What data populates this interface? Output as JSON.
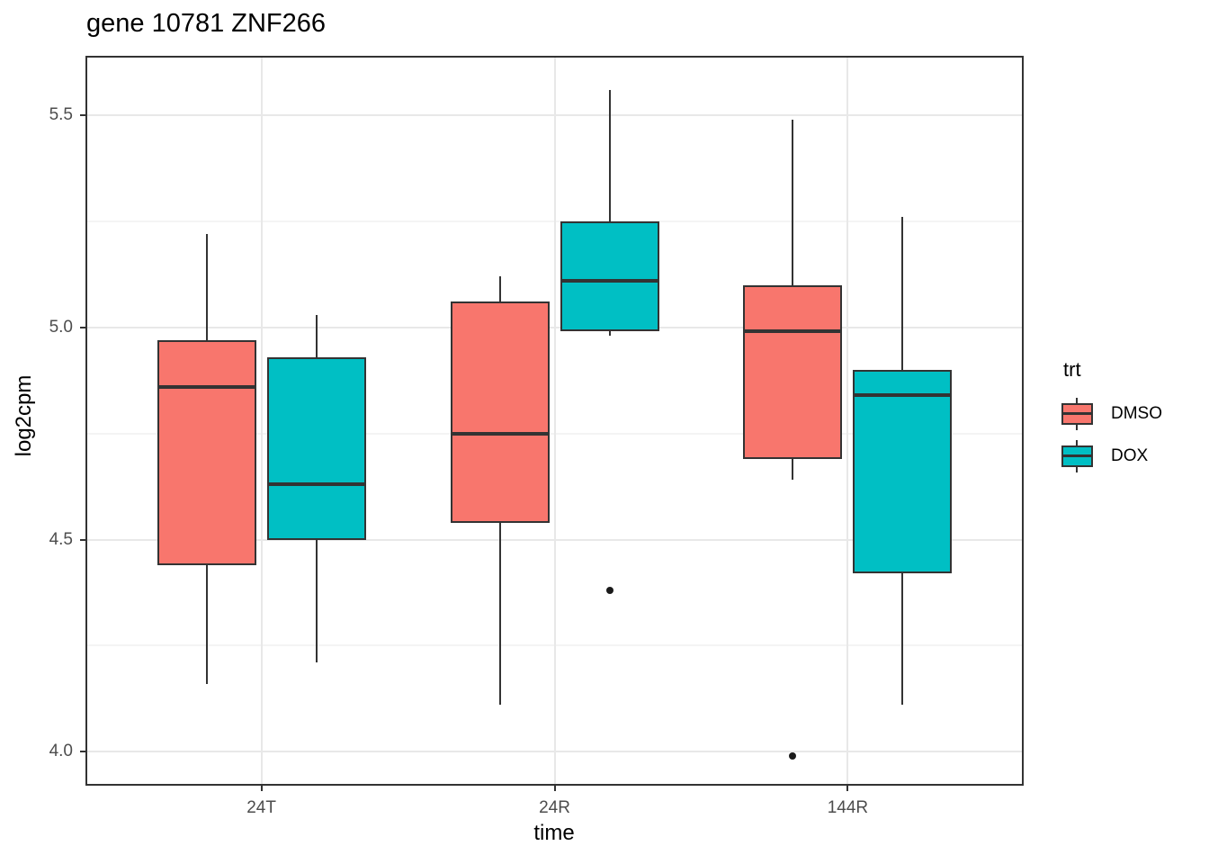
{
  "figure": {
    "background": "#FFFFFF"
  },
  "chart_data": {
    "type": "boxplot",
    "title": "gene 10781 ZNF266",
    "xlabel": "time",
    "ylabel": "log2cpm",
    "categories": [
      "24T",
      "24R",
      "144R"
    ],
    "ylim": [
      3.92,
      5.64
    ],
    "y_major_ticks": [
      4.0,
      4.5,
      5.0,
      5.5
    ],
    "y_major_tick_labels": [
      "4.0",
      "4.5",
      "5.0",
      "5.5"
    ],
    "y_minor_gridlines": [
      4.25,
      4.75,
      5.25
    ],
    "grid": "horizontal major+minor gridlines; vertical major gridline at each category center; white panel with dark border",
    "legend": {
      "title": "trt",
      "position": "right",
      "entries": [
        {
          "label": "DMSO",
          "color": "#F8766D"
        },
        {
          "label": "DOX",
          "color": "#00BFC4"
        }
      ]
    },
    "series": [
      {
        "name": "DMSO",
        "color": "#F8766D",
        "boxes": [
          {
            "category": "24T",
            "lower_whisker": 4.16,
            "q1": 4.44,
            "median": 4.86,
            "q3": 4.97,
            "upper_whisker": 5.22,
            "outliers": []
          },
          {
            "category": "24R",
            "lower_whisker": 4.11,
            "q1": 4.54,
            "median": 4.75,
            "q3": 5.06,
            "upper_whisker": 5.12,
            "outliers": []
          },
          {
            "category": "144R",
            "lower_whisker": 4.64,
            "q1": 4.69,
            "median": 4.99,
            "q3": 5.1,
            "upper_whisker": 5.49,
            "outliers": [
              3.99
            ]
          }
        ]
      },
      {
        "name": "DOX",
        "color": "#00BFC4",
        "boxes": [
          {
            "category": "24T",
            "lower_whisker": 4.21,
            "q1": 4.5,
            "median": 4.63,
            "q3": 4.93,
            "upper_whisker": 5.03,
            "outliers": []
          },
          {
            "category": "24R",
            "lower_whisker": 4.98,
            "q1": 4.99,
            "median": 5.11,
            "q3": 5.25,
            "upper_whisker": 5.56,
            "outliers": [
              4.38
            ]
          },
          {
            "category": "144R",
            "lower_whisker": 4.11,
            "q1": 4.42,
            "median": 4.84,
            "q3": 4.9,
            "upper_whisker": 5.26,
            "outliers": []
          }
        ]
      }
    ],
    "style": {
      "box_border_color": "#333333",
      "median_color": "#333333",
      "whisker_color": "#333333",
      "outlier_color": "#1A1A1A",
      "major_grid_color": "#E8E8E8",
      "minor_grid_color": "#F4F4F4",
      "panel_border_color": "#333333",
      "tick_label_color": "#4D4D4D",
      "axis_title_color": "#000000"
    }
  }
}
